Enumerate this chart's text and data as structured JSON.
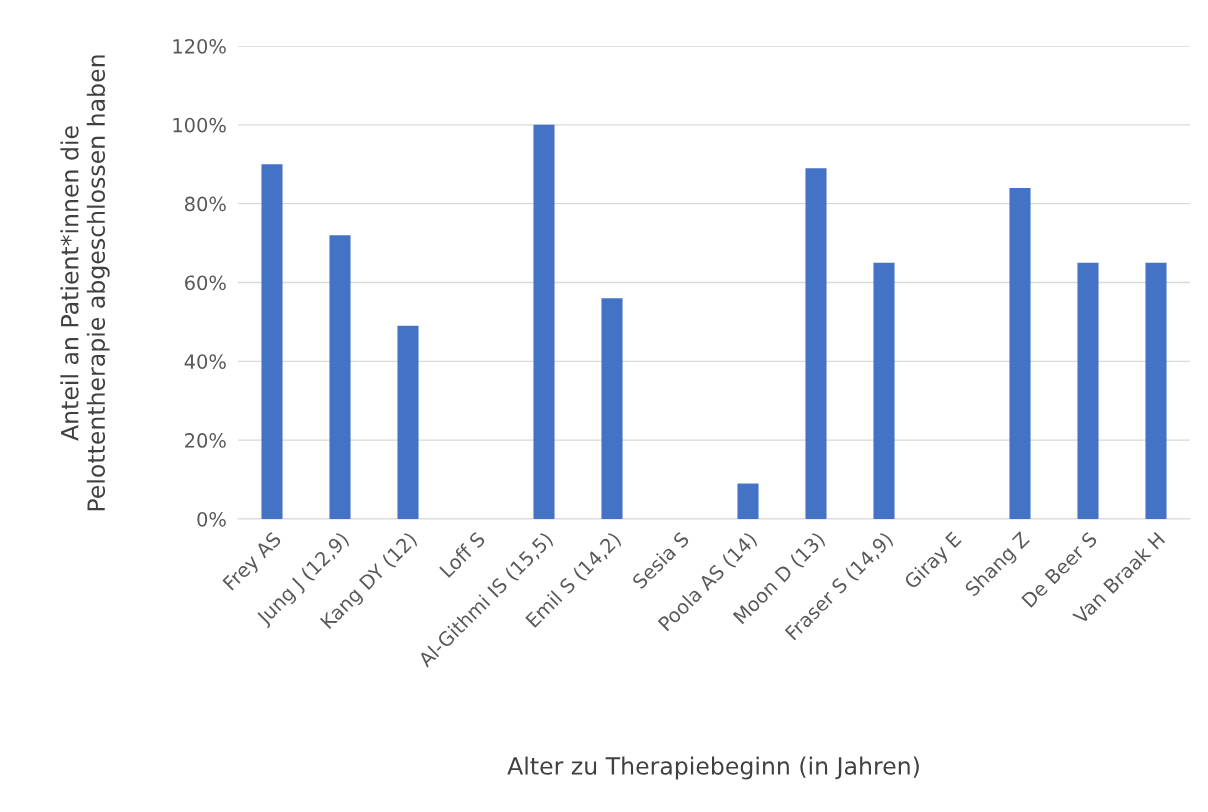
{
  "chart_data": {
    "type": "bar",
    "xlabel": "Alter zu Therapiebeginn (in Jahren)",
    "ylabel": "Anteil an Patient*innen die\nPelottentherapie abgeschlossen haben",
    "categories": [
      "Frey AS",
      "Jung J (12,9)",
      "Kang DY (12)",
      "Loff S",
      "Al-Githmi IS (15,5)",
      "Emil S (14,2)",
      "Sesia S",
      "Poola AS (14)",
      "Moon D (13)",
      "Fraser S (14,9)",
      "Giray E",
      "Shang Z",
      "De Beer S",
      "Van Braak H"
    ],
    "values": [
      90,
      72,
      49,
      null,
      100,
      56,
      null,
      9,
      89,
      65,
      null,
      84,
      65,
      65
    ],
    "color": "#4472c4",
    "ylim": [
      0,
      120
    ],
    "yticks": [
      {
        "value": 0,
        "label": "0%"
      },
      {
        "value": 20,
        "label": "20%"
      },
      {
        "value": 40,
        "label": "40%"
      },
      {
        "value": 60,
        "label": "60%"
      },
      {
        "value": 80,
        "label": "80%"
      },
      {
        "value": 100,
        "label": "100%"
      },
      {
        "value": 120,
        "label": "120%"
      }
    ],
    "grid": "y",
    "legend": false
  }
}
